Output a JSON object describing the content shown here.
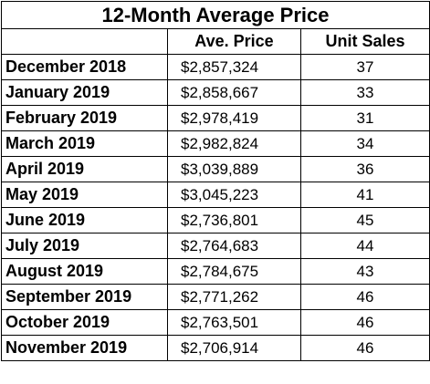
{
  "table": {
    "title": "12-Month Average Price",
    "headers": {
      "month": "",
      "price": "Ave. Price",
      "units": "Unit Sales"
    },
    "rows": [
      {
        "month": "December 2018",
        "price": "$2,857,324",
        "units": "37"
      },
      {
        "month": "January 2019",
        "price": "$2,858,667",
        "units": "33"
      },
      {
        "month": "February 2019",
        "price": "$2,978,419",
        "units": "31"
      },
      {
        "month": "March 2019",
        "price": "$2,982,824",
        "units": "34"
      },
      {
        "month": "April 2019",
        "price": "$3,039,889",
        "units": "36"
      },
      {
        "month": "May 2019",
        "price": "$3,045,223",
        "units": "41"
      },
      {
        "month": "June 2019",
        "price": "$2,736,801",
        "units": "45"
      },
      {
        "month": "July 2019",
        "price": "$2,764,683",
        "units": "44"
      },
      {
        "month": "August 2019",
        "price": "$2,784,675",
        "units": "43"
      },
      {
        "month": "September 2019",
        "price": "$2,771,262",
        "units": "46"
      },
      {
        "month": "October 2019",
        "price": "$2,763,501",
        "units": "46"
      },
      {
        "month": "November 2019",
        "price": "$2,706,914",
        "units": "46"
      }
    ]
  }
}
